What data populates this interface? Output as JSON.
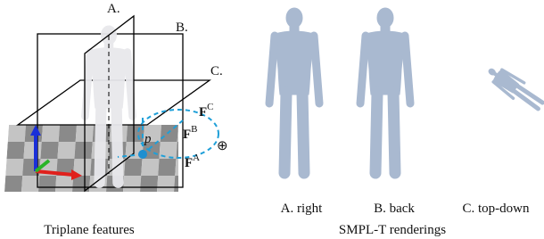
{
  "left_panel": {
    "plane_labels": [
      "A.",
      "B.",
      "C."
    ],
    "features": [
      {
        "symbol": "F",
        "superscript": "C"
      },
      {
        "symbol": "F",
        "superscript": "B"
      },
      {
        "symbol": "F",
        "superscript": "A"
      }
    ],
    "point": "p",
    "operator": "⊕",
    "caption": "Triplane features"
  },
  "right_panel": {
    "views": [
      "A. right",
      "B. back",
      "C. top-down"
    ],
    "caption": "SMPL-T renderings"
  }
}
